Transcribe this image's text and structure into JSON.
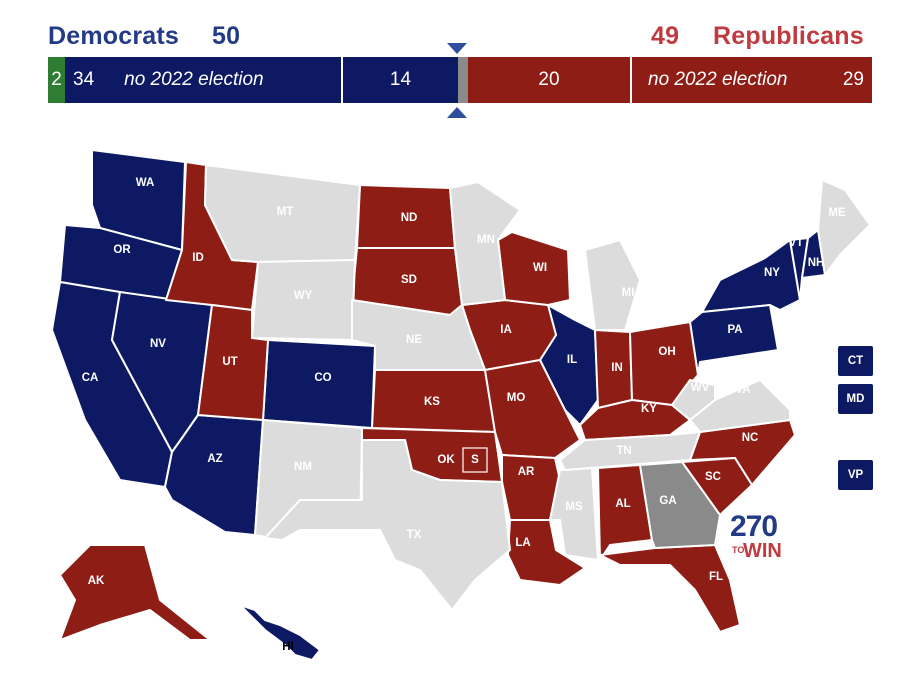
{
  "header": {
    "dem_name": "Democrats",
    "dem_total": "50",
    "rep_total": "49",
    "rep_name": "Republicans"
  },
  "bar": {
    "independent_count": "2",
    "dem_not_up_count": "34",
    "dem_not_up_note": "no 2022 election",
    "dem_up_count": "14",
    "rep_up_count": "20",
    "rep_not_up_note": "no 2022 election",
    "rep_not_up_count": "29"
  },
  "colors": {
    "democrat": "#0d1a63",
    "republican": "#8e1d16",
    "independent": "#2e7d32",
    "tossup": "#8a8a8a",
    "no_election": "#dcdcdc",
    "header_dem": "#233b86",
    "header_rep": "#c03a3f"
  },
  "states": [
    {
      "abbr": "WA",
      "status": "dem"
    },
    {
      "abbr": "OR",
      "status": "dem"
    },
    {
      "abbr": "CA",
      "status": "dem"
    },
    {
      "abbr": "NV",
      "status": "dem"
    },
    {
      "abbr": "AZ",
      "status": "dem"
    },
    {
      "abbr": "CO",
      "status": "dem"
    },
    {
      "abbr": "IL",
      "status": "dem"
    },
    {
      "abbr": "NY",
      "status": "dem"
    },
    {
      "abbr": "VT",
      "status": "dem"
    },
    {
      "abbr": "NH",
      "status": "dem"
    },
    {
      "abbr": "PA",
      "status": "dem"
    },
    {
      "abbr": "HI",
      "status": "dem"
    },
    {
      "abbr": "ID",
      "status": "rep"
    },
    {
      "abbr": "UT",
      "status": "rep"
    },
    {
      "abbr": "ND",
      "status": "rep"
    },
    {
      "abbr": "SD",
      "status": "rep"
    },
    {
      "abbr": "KS",
      "status": "rep"
    },
    {
      "abbr": "OK",
      "status": "rep"
    },
    {
      "abbr": "IA",
      "status": "rep"
    },
    {
      "abbr": "MO",
      "status": "rep"
    },
    {
      "abbr": "AR",
      "status": "rep"
    },
    {
      "abbr": "LA",
      "status": "rep"
    },
    {
      "abbr": "WI",
      "status": "rep"
    },
    {
      "abbr": "IN",
      "status": "rep"
    },
    {
      "abbr": "OH",
      "status": "rep"
    },
    {
      "abbr": "KY",
      "status": "rep"
    },
    {
      "abbr": "AL",
      "status": "rep"
    },
    {
      "abbr": "FL",
      "status": "rep"
    },
    {
      "abbr": "NC",
      "status": "rep"
    },
    {
      "abbr": "SC",
      "status": "rep"
    },
    {
      "abbr": "AK",
      "status": "rep"
    },
    {
      "abbr": "GA",
      "status": "tossup"
    },
    {
      "abbr": "MT",
      "status": "none"
    },
    {
      "abbr": "WY",
      "status": "none"
    },
    {
      "abbr": "NE",
      "status": "none"
    },
    {
      "abbr": "MN",
      "status": "none"
    },
    {
      "abbr": "MI",
      "status": "none"
    },
    {
      "abbr": "NM",
      "status": "none"
    },
    {
      "abbr": "TX",
      "status": "none"
    },
    {
      "abbr": "MS",
      "status": "none"
    },
    {
      "abbr": "TN",
      "status": "none"
    },
    {
      "abbr": "WV",
      "status": "none"
    },
    {
      "abbr": "VA",
      "status": "none"
    },
    {
      "abbr": "ME",
      "status": "none"
    }
  ],
  "special_election_marker": "S",
  "small_state_boxes": [
    {
      "abbr": "CT",
      "status": "dem"
    },
    {
      "abbr": "MD",
      "status": "dem"
    },
    {
      "abbr": "VP",
      "status": "dem"
    }
  ],
  "logo": {
    "big": "270",
    "to": "TO",
    "win": "WIN"
  }
}
